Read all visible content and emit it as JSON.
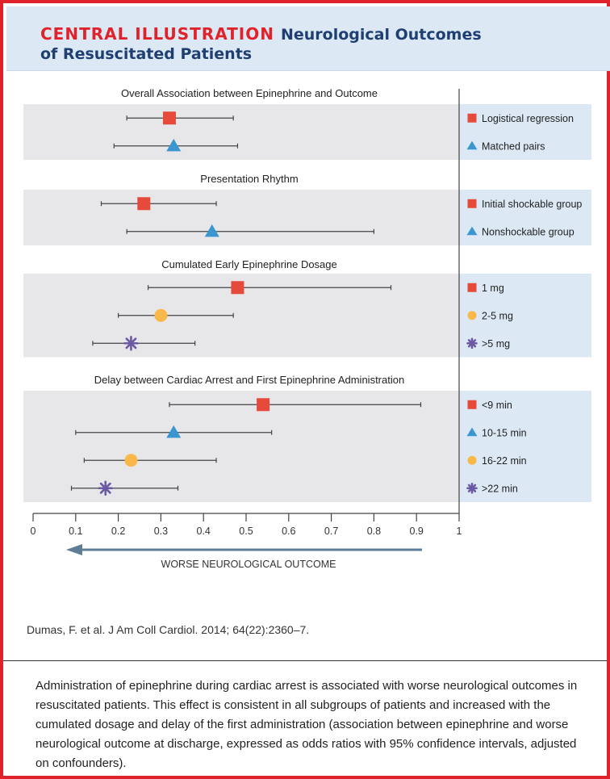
{
  "header": {
    "kicker": "CENTRAL ILLUSTRATION",
    "title": "Neurological Outcomes of Resuscitated Patients"
  },
  "colors": {
    "frame": "#e0232b",
    "header_bg": "#dce8f4",
    "title": "#1f3f73",
    "panel_bg": "#e7e7e9",
    "legend_bg": "#dce8f4",
    "square": "#e64a3b",
    "triangle": "#3b96cf",
    "circle": "#fbb84a",
    "asterisk": "#6b5aa3",
    "arrow": "#5e7d96"
  },
  "chart_data": {
    "type": "forest",
    "xlim": [
      0,
      1
    ],
    "xticks": [
      0,
      0.1,
      0.2,
      0.3,
      0.4,
      0.5,
      0.6,
      0.7,
      0.8,
      0.9,
      1
    ],
    "tick_labels": [
      "0",
      "0.1",
      "0.2",
      "0.3",
      "0.4",
      "0.5",
      "0.6",
      "0.7",
      "0.8",
      "0.9",
      "1"
    ],
    "reference_line": 1,
    "direction_label": "WORSE NEUROLOGICAL OUTCOME",
    "direction": "left",
    "groups": [
      {
        "title": "Overall Association between Epinephrine and Outcome",
        "rows": [
          {
            "label": "Logistical regression",
            "marker": "square",
            "estimate": 0.32,
            "ci": [
              0.22,
              0.47
            ]
          },
          {
            "label": "Matched pairs",
            "marker": "triangle",
            "estimate": 0.33,
            "ci": [
              0.19,
              0.48
            ]
          }
        ]
      },
      {
        "title": "Presentation Rhythm",
        "rows": [
          {
            "label": "Initial shockable group",
            "marker": "square",
            "estimate": 0.26,
            "ci": [
              0.16,
              0.43
            ]
          },
          {
            "label": "Nonshockable group",
            "marker": "triangle",
            "estimate": 0.42,
            "ci": [
              0.22,
              0.8
            ]
          }
        ]
      },
      {
        "title": "Cumulated Early Epinephrine Dosage",
        "rows": [
          {
            "label": "1 mg",
            "marker": "square",
            "estimate": 0.48,
            "ci": [
              0.27,
              0.84
            ]
          },
          {
            "label": "2-5 mg",
            "marker": "circle",
            "estimate": 0.3,
            "ci": [
              0.2,
              0.47
            ]
          },
          {
            "label": ">5 mg",
            "marker": "asterisk",
            "estimate": 0.23,
            "ci": [
              0.14,
              0.38
            ]
          }
        ]
      },
      {
        "title": "Delay between Cardiac Arrest and First Epinephrine Administration",
        "rows": [
          {
            "label": "<9 min",
            "marker": "square",
            "estimate": 0.54,
            "ci": [
              0.32,
              0.91
            ]
          },
          {
            "label": "10-15 min",
            "marker": "triangle",
            "estimate": 0.33,
            "ci": [
              0.1,
              0.56
            ]
          },
          {
            "label": "16-22 min",
            "marker": "circle",
            "estimate": 0.23,
            "ci": [
              0.12,
              0.43
            ]
          },
          {
            "label": ">22 min",
            "marker": "asterisk",
            "estimate": 0.17,
            "ci": [
              0.09,
              0.34
            ]
          }
        ]
      }
    ]
  },
  "citation": "Dumas, F. et al. J Am Coll Cardiol. 2014; 64(22):2360–7.",
  "caption": "Administration of epinephrine during cardiac arrest is associated with worse neurological outcomes in resuscitated patients. This effect is consistent in all subgroups of patients and increased with the cumulated dosage and delay of the first administration (association between epinephrine and worse neurological outcome at discharge, expressed as odds ratios with 95% confidence intervals, adjusted on confounders)."
}
